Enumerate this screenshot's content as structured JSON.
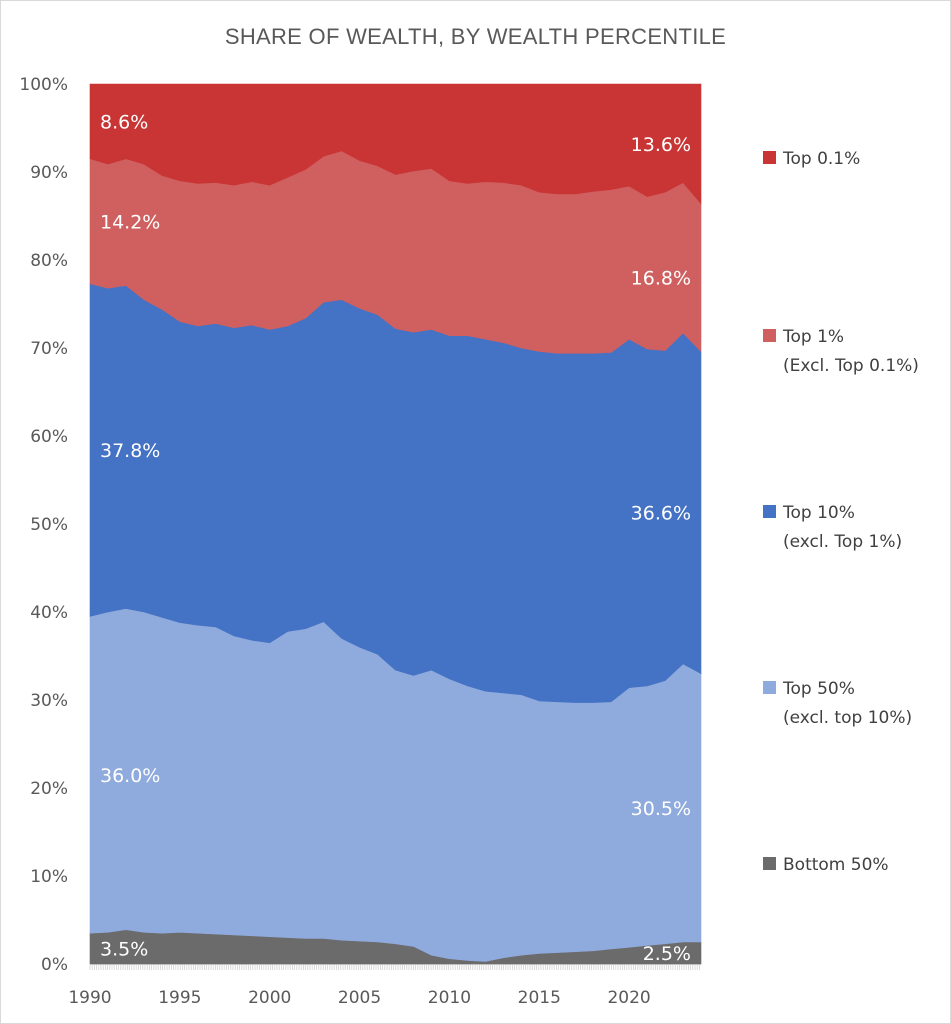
{
  "chart_data": {
    "type": "area",
    "stacked": true,
    "title": "SHARE OF WEALTH, BY WEALTH PERCENTILE",
    "xlabel": "",
    "ylabel": "",
    "xlim": [
      1990,
      2024
    ],
    "ylim": [
      0,
      100
    ],
    "y_ticks": [
      "0%",
      "10%",
      "20%",
      "30%",
      "40%",
      "50%",
      "60%",
      "70%",
      "80%",
      "90%",
      "100%"
    ],
    "x_ticks": [
      "1990",
      "1995",
      "2000",
      "2005",
      "2010",
      "2015",
      "2020"
    ],
    "x_tick_values": [
      1990,
      1995,
      2000,
      2005,
      2010,
      2015,
      2020
    ],
    "grid": false,
    "legend_position": "right",
    "x": [
      1990,
      1991,
      1992,
      1993,
      1994,
      1995,
      1996,
      1997,
      1998,
      1999,
      2000,
      2001,
      2002,
      2003,
      2004,
      2005,
      2006,
      2007,
      2008,
      2009,
      2010,
      2011,
      2012,
      2013,
      2014,
      2015,
      2016,
      2017,
      2018,
      2019,
      2020,
      2021,
      2022,
      2023,
      2024
    ],
    "series": [
      {
        "name": "Bottom 50%",
        "color": "#6b6b6b",
        "values": [
          3.5,
          3.6,
          3.9,
          3.6,
          3.5,
          3.6,
          3.5,
          3.4,
          3.3,
          3.2,
          3.1,
          3.0,
          2.9,
          2.9,
          2.7,
          2.6,
          2.5,
          2.3,
          2.0,
          1.0,
          0.6,
          0.4,
          0.3,
          0.7,
          1.0,
          1.2,
          1.3,
          1.4,
          1.5,
          1.7,
          1.9,
          2.1,
          2.3,
          2.5,
          2.5
        ]
      },
      {
        "name": "Top 50%",
        "sublabel": "(excl. top 10%)",
        "color": "#8faadc",
        "values": [
          36.0,
          36.4,
          36.5,
          36.4,
          35.9,
          35.2,
          35.0,
          34.9,
          34.0,
          33.6,
          33.4,
          34.8,
          35.2,
          36.0,
          34.3,
          33.4,
          32.7,
          31.1,
          30.8,
          32.4,
          31.8,
          31.2,
          30.7,
          30.1,
          29.6,
          28.7,
          28.5,
          28.3,
          28.2,
          28.1,
          29.5,
          29.5,
          29.9,
          31.6,
          30.5
        ]
      },
      {
        "name": "Top 10%",
        "sublabel": "(excl. Top 1%)",
        "color": "#4472c4",
        "values": [
          37.8,
          36.8,
          36.7,
          35.5,
          35.0,
          34.2,
          34.0,
          34.5,
          35.0,
          35.8,
          35.6,
          34.7,
          35.3,
          36.3,
          38.5,
          38.5,
          38.6,
          38.8,
          39.0,
          38.7,
          39.0,
          39.8,
          40.0,
          39.8,
          39.4,
          39.7,
          39.6,
          39.7,
          39.7,
          39.7,
          39.6,
          38.3,
          37.5,
          37.6,
          36.6
        ]
      },
      {
        "name": "Top 1%",
        "sublabel": "(Excl. Top 0.1%)",
        "color": "#d06060",
        "values": [
          14.2,
          14.1,
          14.4,
          15.4,
          15.2,
          16.0,
          16.2,
          16.0,
          16.2,
          16.3,
          16.4,
          16.9,
          16.9,
          16.6,
          16.9,
          16.8,
          16.9,
          17.5,
          18.3,
          18.3,
          17.6,
          17.3,
          17.9,
          18.2,
          18.5,
          18.1,
          18.1,
          18.1,
          18.4,
          18.5,
          17.4,
          17.3,
          18.0,
          17.1,
          16.8
        ]
      },
      {
        "name": "Top 0.1%",
        "color": "#c93535",
        "values": [
          8.6,
          9.1,
          8.5,
          9.1,
          10.4,
          11.0,
          11.3,
          11.2,
          11.5,
          11.1,
          11.5,
          10.6,
          9.7,
          8.2,
          7.6,
          8.7,
          9.3,
          10.3,
          9.9,
          9.6,
          11.0,
          11.3,
          11.1,
          11.2,
          11.5,
          12.3,
          12.5,
          12.5,
          12.2,
          12.0,
          11.6,
          12.8,
          12.3,
          13.2,
          13.6
        ]
      }
    ],
    "data_labels": [
      {
        "series": "Bottom 50%",
        "side": "start",
        "text": "3.5%"
      },
      {
        "series": "Top 50%",
        "side": "start",
        "text": "36.0%"
      },
      {
        "series": "Top 10%",
        "side": "start",
        "text": "37.8%"
      },
      {
        "series": "Top 1%",
        "side": "start",
        "text": "14.2%"
      },
      {
        "series": "Top 0.1%",
        "side": "start",
        "text": "8.6%"
      },
      {
        "series": "Bottom 50%",
        "side": "end",
        "text": "2.5%"
      },
      {
        "series": "Top 50%",
        "side": "end",
        "text": "30.5%"
      },
      {
        "series": "Top 10%",
        "side": "end",
        "text": "36.6%"
      },
      {
        "series": "Top 1%",
        "side": "end",
        "text": "16.8%"
      },
      {
        "series": "Top 0.1%",
        "side": "end",
        "text": "13.6%"
      }
    ]
  }
}
